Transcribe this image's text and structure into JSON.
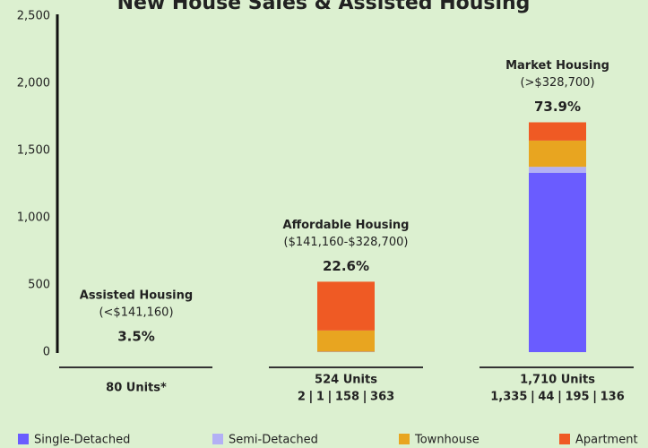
{
  "chart_data": {
    "type": "bar",
    "stacked": true,
    "title": "New House Sales & Assisted Housing",
    "categories": [
      "Assisted Housing",
      "Affordable Housing",
      "Market Housing"
    ],
    "category_ranges": [
      "(<$141,160)",
      "($141,160-$328,700)",
      "(>$328,700)"
    ],
    "shares": [
      3.5,
      22.6,
      73.9
    ],
    "share_labels": [
      "3.5%",
      "22.6%",
      "73.9%"
    ],
    "unit_labels": [
      "80 Units*",
      "524 Units",
      "1,710 Units"
    ],
    "series": [
      {
        "name": "Single-Detached",
        "color": "#6a5cff",
        "values": [
          null,
          2,
          1335
        ],
        "value_labels": [
          null,
          "2",
          "1,335"
        ]
      },
      {
        "name": "Semi-Detached",
        "color": "#b3b0f5",
        "values": [
          null,
          1,
          44
        ],
        "value_labels": [
          null,
          "1",
          "44"
        ]
      },
      {
        "name": "Townhouse",
        "color": "#e8a520",
        "values": [
          null,
          158,
          195
        ],
        "value_labels": [
          null,
          "158",
          "195"
        ]
      },
      {
        "name": "Apartment",
        "color": "#ef5a24",
        "values": [
          null,
          363,
          136
        ],
        "value_labels": [
          null,
          "363",
          "136"
        ]
      }
    ],
    "ylim": [
      0,
      2500
    ],
    "yticks": [
      0,
      500,
      {
        "value": 1000,
        "label": "1,000"
      },
      {
        "value": 1500,
        "label": "1,500"
      },
      {
        "value": 2000,
        "label": "2,000"
      },
      {
        "value": 2500,
        "label": "2,500"
      }
    ]
  }
}
